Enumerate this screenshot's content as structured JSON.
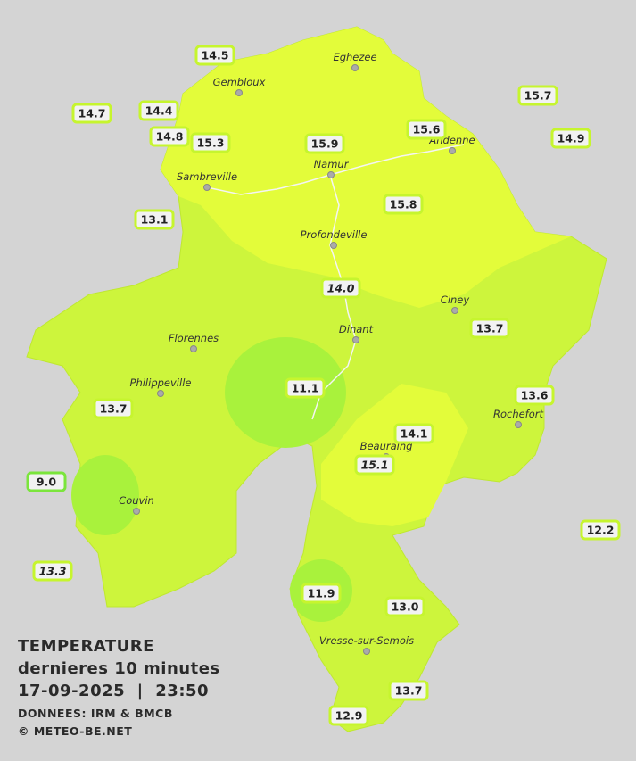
{
  "title": {
    "lines": [
      "TEMPERATURE",
      "dernieres 10 minutes",
      "17-09-2025  |  23:50"
    ],
    "source": "DONNEES: IRM & BMCB",
    "credit": "© METEO-BE.NET"
  },
  "cities": [
    "Eghezee",
    "Gembloux",
    "Andenne",
    "Namur",
    "Sambreville",
    "Profondeville",
    "Ciney",
    "Dinant",
    "Florennes",
    "Philippeville",
    "Rochefort",
    "Beauraing",
    "Couvin",
    "Vresse-sur-Semois"
  ],
  "stations": [
    "14.5",
    "14.7",
    "14.4",
    "14.8",
    "15.3",
    "15.9",
    "15.6",
    "15.7",
    "14.9",
    "13.1",
    "15.8",
    "14.0",
    "13.7",
    "11.1",
    "13.6",
    "13.7",
    "14.1",
    "15.1",
    "9.0",
    "12.2",
    "13.3",
    "11.9",
    "13.0",
    "13.7",
    "12.9"
  ]
}
